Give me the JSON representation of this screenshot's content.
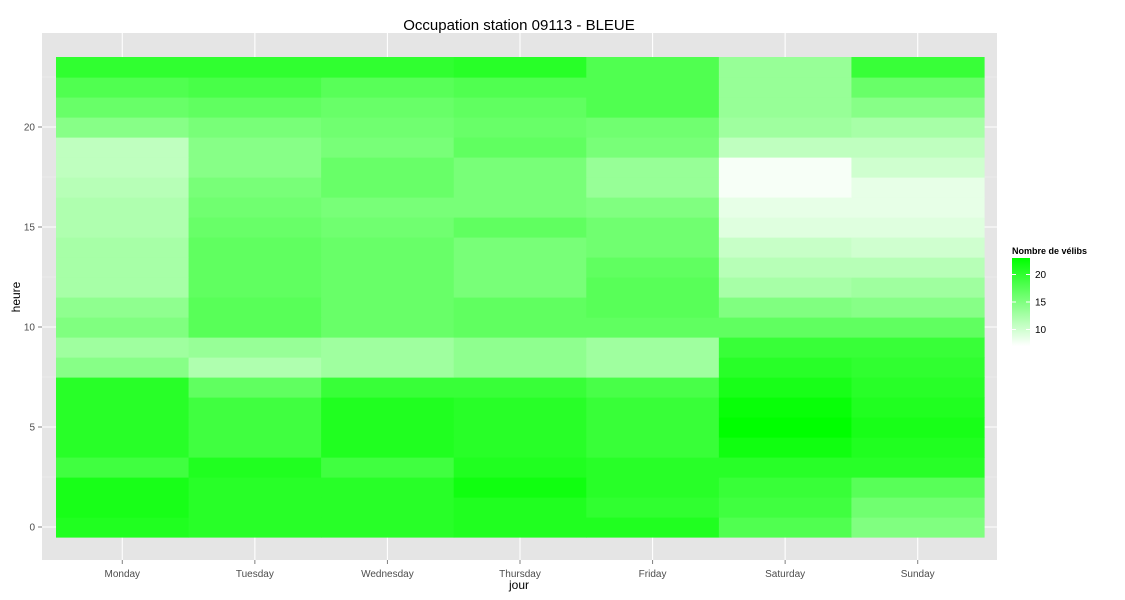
{
  "chart_data": {
    "type": "heatmap",
    "title": "Occupation station 09113 - BLEUE",
    "xlabel": "jour",
    "ylabel": "heure",
    "x_categories": [
      "Monday",
      "Tuesday",
      "Wednesday",
      "Thursday",
      "Friday",
      "Saturday",
      "Sunday"
    ],
    "y_hours": [
      0,
      1,
      2,
      3,
      4,
      5,
      6,
      7,
      8,
      9,
      10,
      11,
      12,
      13,
      14,
      15,
      16,
      17,
      18,
      19,
      20,
      21,
      22,
      23
    ],
    "y_ticks": [
      0,
      5,
      10,
      15,
      20
    ],
    "ylim": [
      -0.5,
      23.5
    ],
    "grid": true,
    "color_scale": {
      "low": "#ffffff",
      "high": "#00ff00",
      "min": 7,
      "max": 23
    },
    "legend": {
      "title": "Nombre de vélibs",
      "ticks": [
        10,
        15,
        20
      ],
      "placement": "right"
    },
    "values": [
      [
        21,
        20.5,
        20.5,
        21,
        21,
        18,
        15
      ],
      [
        21.5,
        20.5,
        20.5,
        21,
        20,
        19,
        16
      ],
      [
        21.5,
        20.5,
        20.5,
        22,
        20.5,
        19.5,
        17.5
      ],
      [
        19,
        21,
        19,
        21,
        20.5,
        20.5,
        20.5
      ],
      [
        20.5,
        19,
        21,
        20.5,
        19.5,
        22,
        21
      ],
      [
        20.5,
        19,
        21,
        20.5,
        19.5,
        23,
        21.5
      ],
      [
        20.5,
        19,
        21,
        20.5,
        19.5,
        22.5,
        21
      ],
      [
        20.5,
        17,
        19.5,
        19.5,
        18.5,
        21.5,
        20.5
      ],
      [
        14.5,
        12,
        13,
        14,
        13,
        20.5,
        20
      ],
      [
        13,
        13.5,
        13,
        14,
        13,
        19.5,
        19.5
      ],
      [
        15,
        17.5,
        16.5,
        17,
        17,
        17,
        17
      ],
      [
        14,
        17.5,
        16.5,
        17,
        17.5,
        15,
        14.5
      ],
      [
        12.5,
        17,
        16.5,
        15.5,
        17.5,
        12.5,
        13
      ],
      [
        12.5,
        17,
        16.5,
        15.5,
        17,
        11.5,
        11.5
      ],
      [
        12.5,
        17,
        16.5,
        15.5,
        16,
        10.5,
        10
      ],
      [
        12,
        16.5,
        16,
        17,
        16,
        9,
        9
      ],
      [
        12,
        16,
        15.5,
        15.5,
        15,
        8.5,
        8.5
      ],
      [
        11.5,
        15.5,
        16.5,
        15.5,
        13.5,
        7.5,
        8.5
      ],
      [
        11,
        14.5,
        16.5,
        15.5,
        13.5,
        7.5,
        10
      ],
      [
        11,
        14.5,
        15.5,
        17,
        15.5,
        11,
        11
      ],
      [
        14.5,
        15.5,
        16,
        16.5,
        16,
        13,
        12.5
      ],
      [
        16.5,
        17,
        16.5,
        17,
        18,
        13.5,
        14.5
      ],
      [
        18,
        18.5,
        17.5,
        18,
        18,
        13.5,
        16.5
      ],
      [
        20,
        20,
        20,
        20.5,
        18,
        13.5,
        19.5
      ]
    ]
  }
}
